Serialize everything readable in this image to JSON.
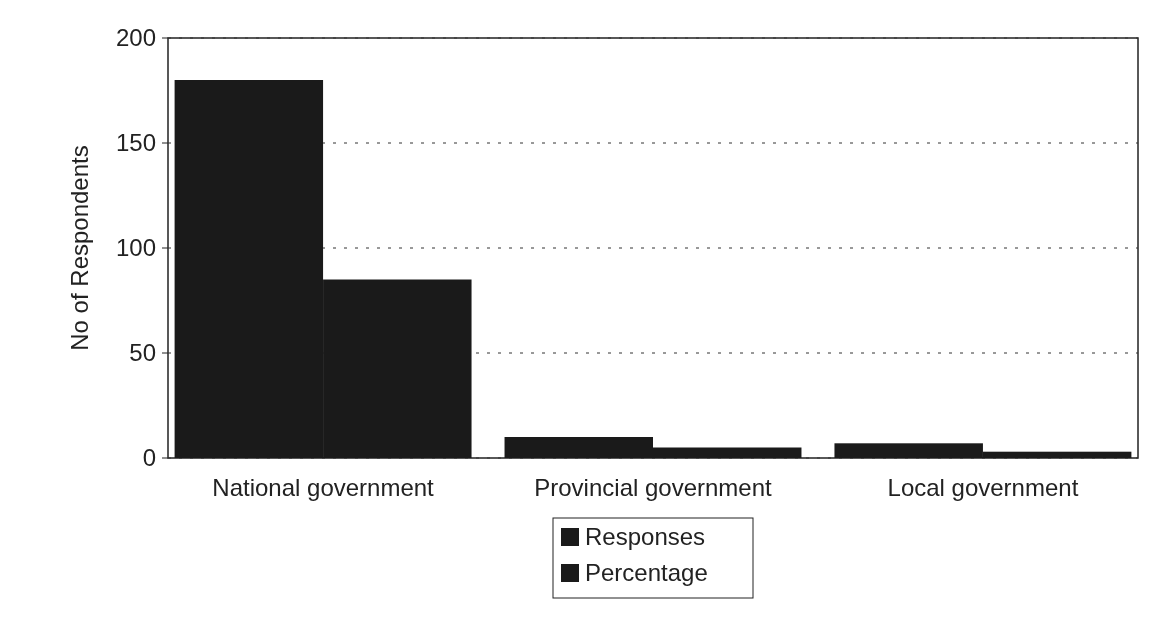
{
  "chart_data": {
    "type": "bar",
    "ylabel": "No of Respondents",
    "categories": [
      "National government",
      "Provincial government",
      "Local government"
    ],
    "series": [
      {
        "name": "Responses",
        "color": "#1a1a1a",
        "values": [
          180,
          10,
          7
        ]
      },
      {
        "name": "Percentage",
        "color": "#1a1a1a",
        "values": [
          85,
          5,
          3
        ]
      }
    ],
    "ylim": [
      0,
      200
    ],
    "yticks": [
      0,
      50,
      100,
      150,
      200
    ],
    "grid": "y",
    "legend": "bottom"
  }
}
